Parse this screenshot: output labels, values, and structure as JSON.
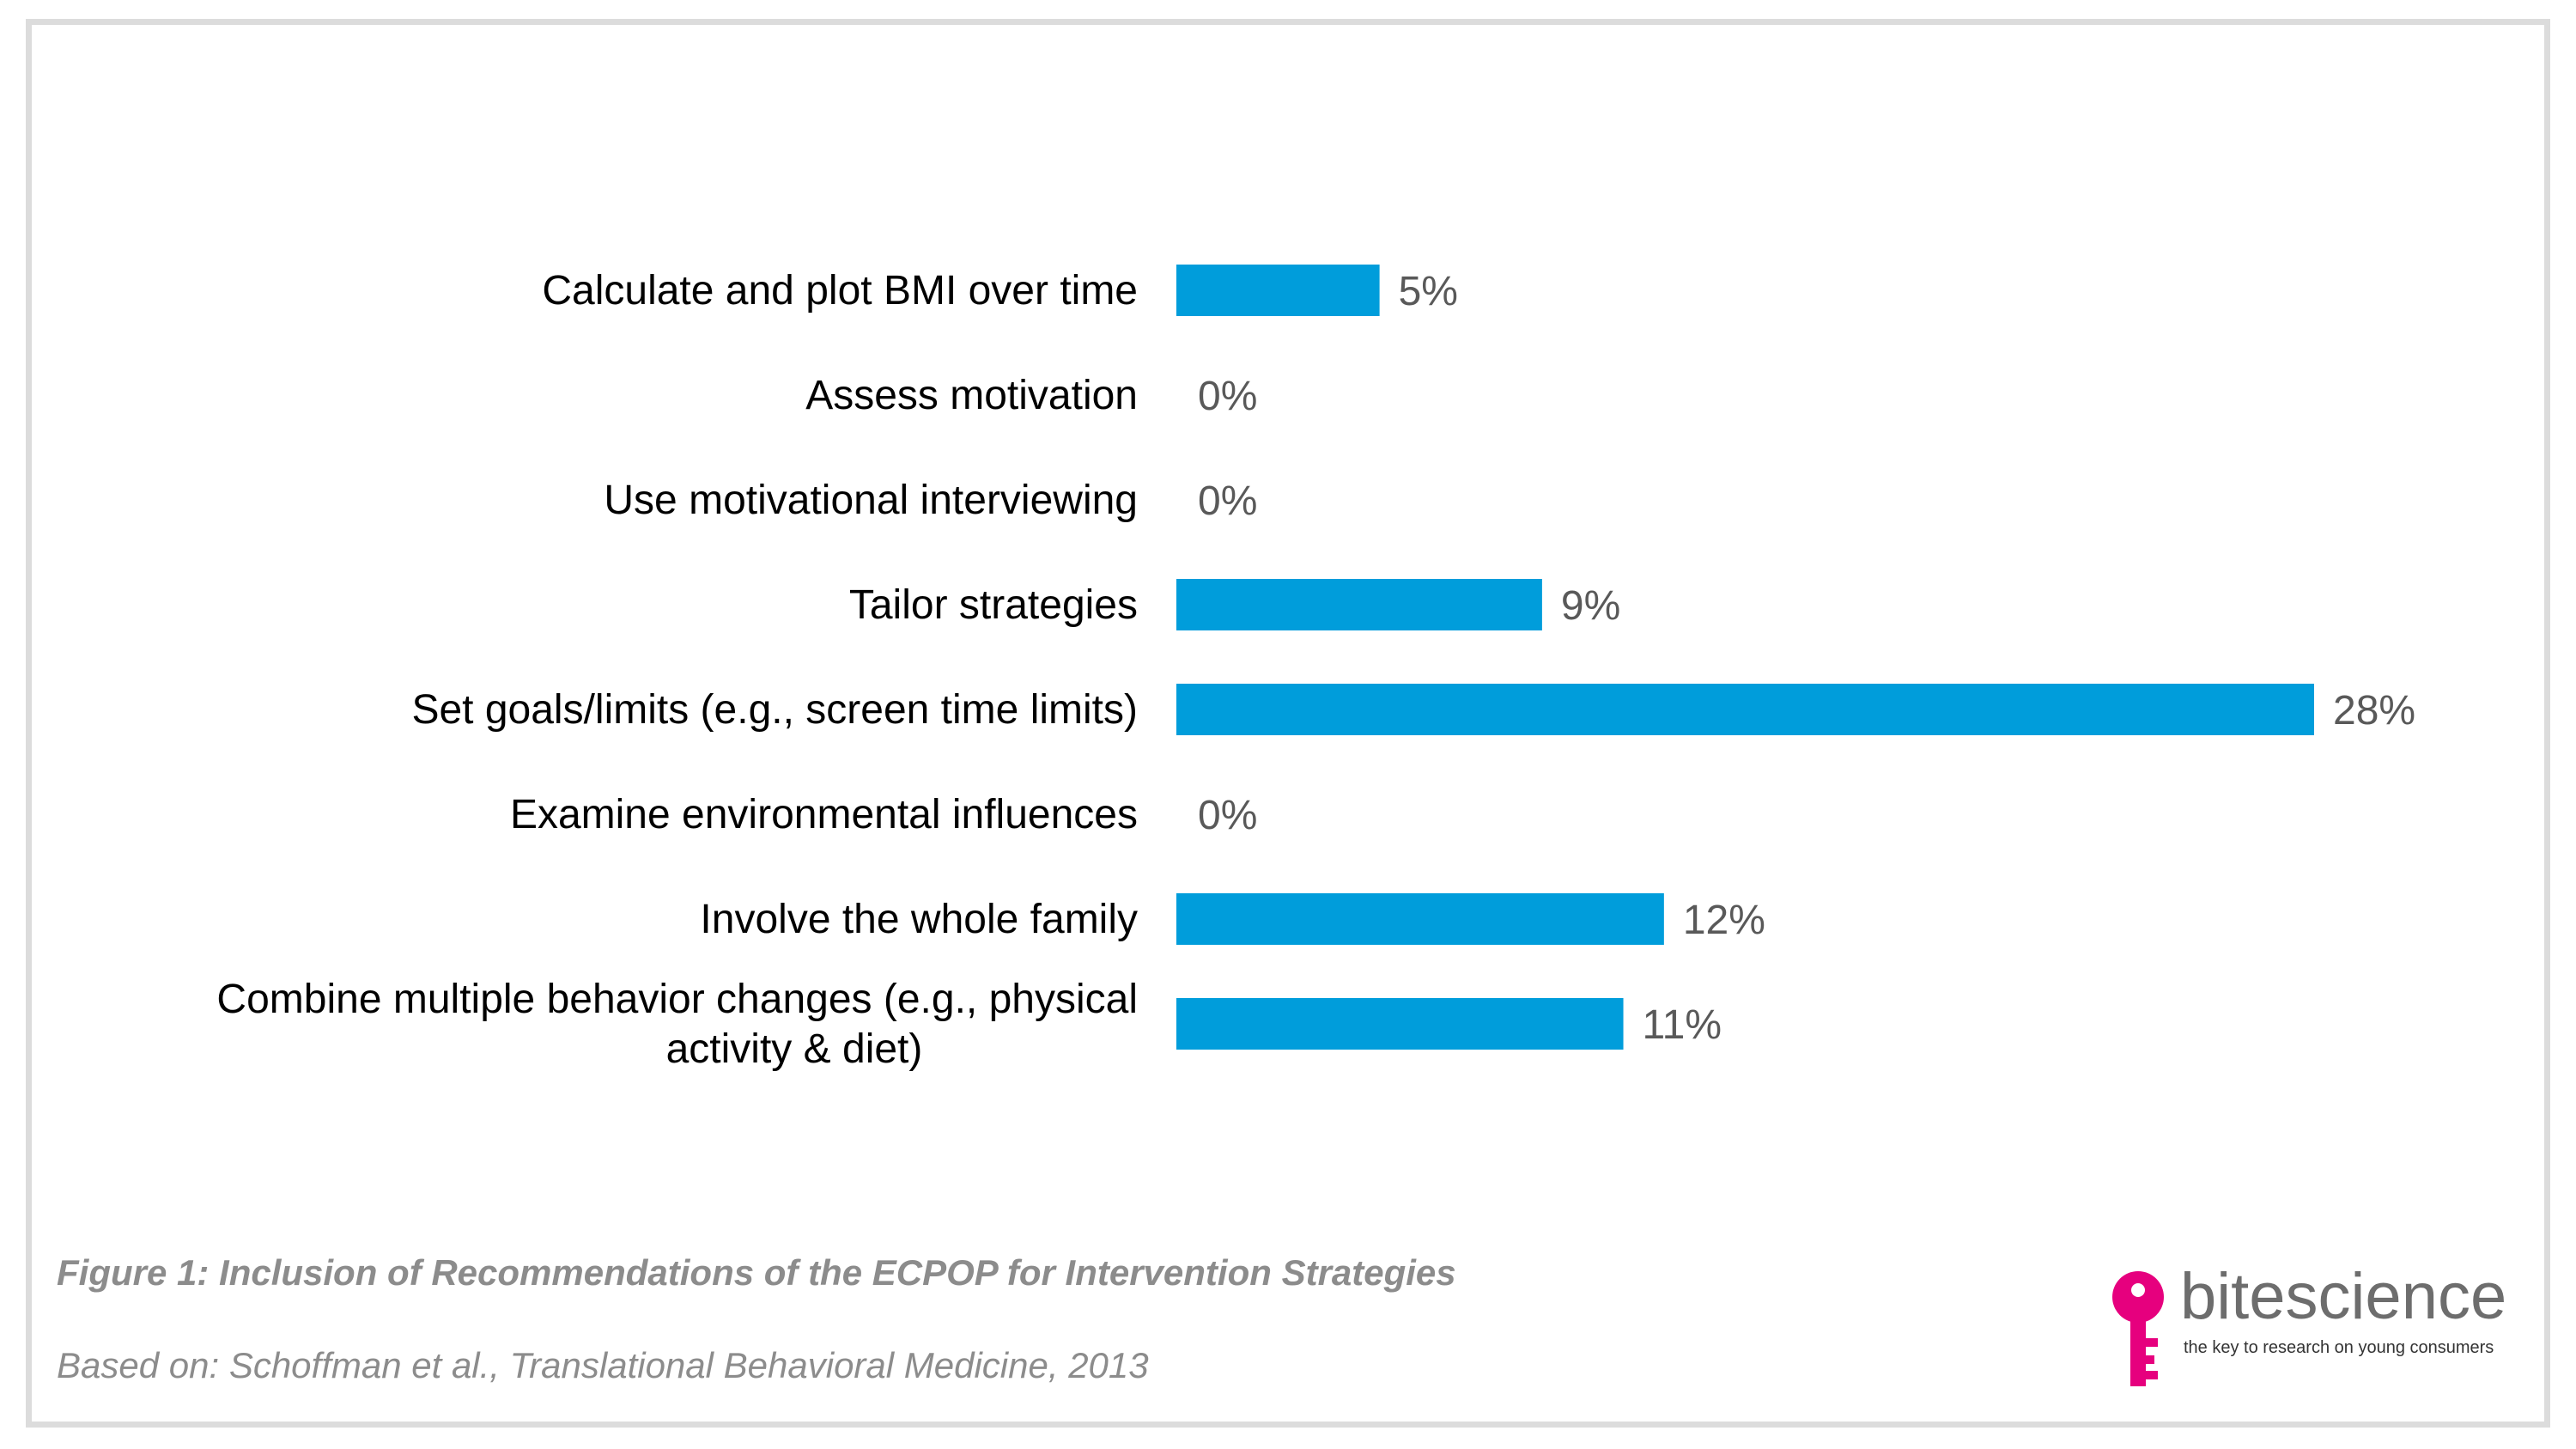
{
  "chart_data": {
    "type": "bar",
    "orientation": "horizontal",
    "categories": [
      "Calculate and plot BMI over time",
      "Assess motivation",
      "Use motivational interviewing",
      "Tailor strategies",
      "Set goals/limits (e.g., screen time limits)",
      "Examine environmental influences",
      "Involve the whole family",
      "Combine multiple behavior changes (e.g., physical activity & diet)"
    ],
    "category_lines": [
      [
        "Calculate and plot BMI over time"
      ],
      [
        "Assess motivation"
      ],
      [
        "Use motivational interviewing"
      ],
      [
        "Tailor strategies"
      ],
      [
        "Set goals/limits (e.g., screen time limits)"
      ],
      [
        "Examine environmental influences"
      ],
      [
        "Involve the whole family"
      ],
      [
        "Combine multiple behavior changes (e.g., physical",
        "activity & diet)"
      ]
    ],
    "values": [
      5,
      0,
      0,
      9,
      28,
      0,
      12,
      11
    ],
    "value_labels": [
      "5%",
      "0%",
      "0%",
      "9%",
      "28%",
      "0%",
      "12%",
      "11%"
    ],
    "xlim": [
      0,
      28
    ],
    "grid": false,
    "legend": false,
    "bar_color": "#009ddb"
  },
  "caption": "Figure 1: Inclusion of Recommendations of the ECPOP for Intervention Strategies",
  "source": "Based on: Schoffman et al., Translational Behavioral Medicine, 2013",
  "logo": {
    "name": "bitescience",
    "tagline": "the key to research on young consumers",
    "name_color": "#6d6d6d",
    "key_color": "#e6007e"
  }
}
